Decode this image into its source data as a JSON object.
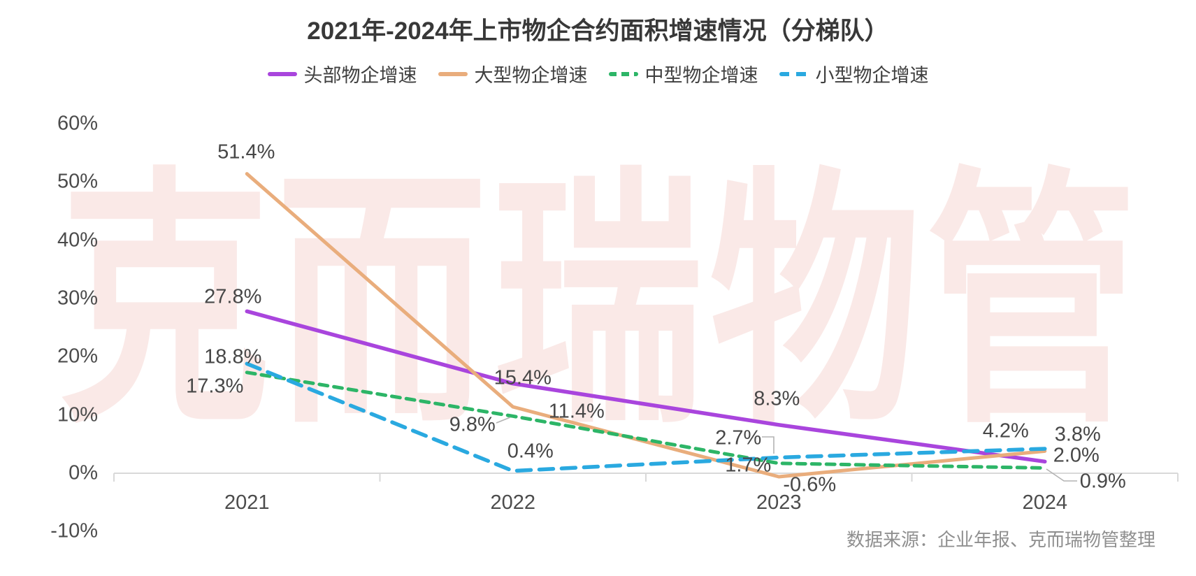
{
  "source_note": "数据来源：企业年报、克而瑞物管整理",
  "watermark_text": "克而瑞物管",
  "colors": {
    "head": "#a945dd",
    "large": "#e9ad7c",
    "mid": "#2db567",
    "small": "#2aa9e0",
    "axis": "#d9d9d9",
    "leader": "#b3b3b3",
    "title_text": "#383838",
    "tick_text": "#4c4c4c",
    "source_text": "#8f8f8f",
    "watermark": "rgba(215,75,55,0.12)"
  },
  "chart_data": {
    "type": "line",
    "title": "2021年-2024年上市物企合约面积增速情况（分梯队）",
    "categories": [
      "2021",
      "2022",
      "2023",
      "2024"
    ],
    "series": [
      {
        "key": "head",
        "name": "头部物企增速",
        "color": "#a945dd",
        "line_style": "solid",
        "values": [
          27.8,
          15.4,
          8.3,
          2.0
        ],
        "labels": [
          "27.8%",
          "15.4%",
          "8.3%",
          "2.0%"
        ]
      },
      {
        "key": "large",
        "name": "大型物企增速",
        "color": "#e9ad7c",
        "line_style": "solid",
        "values": [
          51.4,
          11.4,
          -0.6,
          3.8
        ],
        "labels": [
          "51.4%",
          "11.4%",
          "-0.6%",
          "3.8%"
        ]
      },
      {
        "key": "mid",
        "name": "中型物企增速",
        "color": "#2db567",
        "line_style": "dashed",
        "values": [
          17.3,
          9.8,
          1.7,
          0.9
        ],
        "labels": [
          "17.3%",
          "9.8%",
          "1.7%",
          "0.9%"
        ]
      },
      {
        "key": "small",
        "name": "小型物企增速",
        "color": "#2aa9e0",
        "line_style": "dashed",
        "values": [
          18.8,
          0.4,
          2.7,
          4.2
        ],
        "labels": [
          "18.8%",
          "0.4%",
          "2.7%",
          "4.2%"
        ]
      }
    ],
    "xlabel": "",
    "ylabel": "",
    "ylim": [
      -10,
      60
    ],
    "ytick_step": 10,
    "yticks": [
      "60%",
      "50%",
      "40%",
      "30%",
      "20%",
      "10%",
      "0%",
      "-10%"
    ],
    "grid": false,
    "legend_position": "top"
  }
}
